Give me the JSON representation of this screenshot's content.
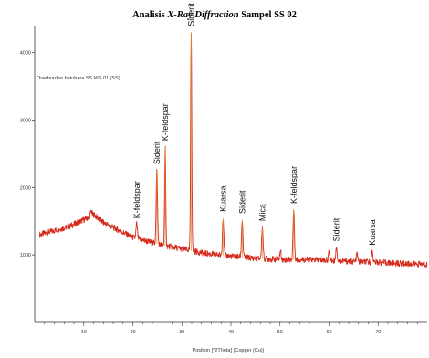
{
  "title": {
    "prefix": "Analisis ",
    "emphasis": "X-Ray Diffraction",
    "suffix": " Sampel SS 02"
  },
  "chart_data": {
    "type": "line",
    "sample_label": "Overburden batubara SS WS 01    (SS)",
    "xlabel": "Position [°2Theta] (Copper (Cu))",
    "ylabel": "",
    "xlim": [
      0,
      80
    ],
    "ylim": [
      0,
      4400
    ],
    "x_ticks": [
      10,
      20,
      30,
      40,
      50,
      60,
      70
    ],
    "y_ticks": [
      1000,
      2000,
      3000,
      4000
    ],
    "grid": false,
    "series": [
      {
        "color": "#d42a1a",
        "peak_color": "#e39a2c",
        "baseline": [
          [
            1,
            1300
          ],
          [
            4,
            1360
          ],
          [
            7,
            1420
          ],
          [
            10,
            1520
          ],
          [
            12,
            1600
          ],
          [
            14,
            1480
          ],
          [
            17,
            1370
          ],
          [
            20,
            1260
          ],
          [
            25,
            1160
          ],
          [
            30,
            1090
          ],
          [
            35,
            1020
          ],
          [
            40,
            980
          ],
          [
            45,
            950
          ],
          [
            50,
            930
          ],
          [
            55,
            930
          ],
          [
            60,
            920
          ],
          [
            65,
            900
          ],
          [
            70,
            890
          ],
          [
            75,
            870
          ],
          [
            80,
            860
          ]
        ],
        "peaks": [
          [
            11.5,
            1650
          ],
          [
            20.8,
            1460
          ],
          [
            24.9,
            2250
          ],
          [
            26.6,
            2600
          ],
          [
            31.9,
            4300
          ],
          [
            38.4,
            1550
          ],
          [
            42.3,
            1520
          ],
          [
            46.4,
            1420
          ],
          [
            50.1,
            1060
          ],
          [
            52.8,
            1680
          ],
          [
            60.0,
            1030
          ],
          [
            61.5,
            1120
          ],
          [
            65.7,
            1020
          ],
          [
            68.8,
            1060
          ]
        ]
      }
    ],
    "annotations": [
      {
        "text": "K-feldspar",
        "x": 20.8,
        "y": 1500
      },
      {
        "text": "Siderit",
        "x": 24.9,
        "y": 2300
      },
      {
        "text": "K-feldspar",
        "x": 26.6,
        "y": 2650
      },
      {
        "text": "Siderit",
        "x": 31.9,
        "y": 4350
      },
      {
        "text": "Kuarsa",
        "x": 38.4,
        "y": 1600
      },
      {
        "text": "Siderit",
        "x": 42.3,
        "y": 1570
      },
      {
        "text": "Mica",
        "x": 46.4,
        "y": 1460
      },
      {
        "text": "K-feldspar",
        "x": 52.8,
        "y": 1720
      },
      {
        "text": "Siderit",
        "x": 61.5,
        "y": 1160
      },
      {
        "text": "Kuarsa",
        "x": 68.8,
        "y": 1100
      }
    ]
  }
}
